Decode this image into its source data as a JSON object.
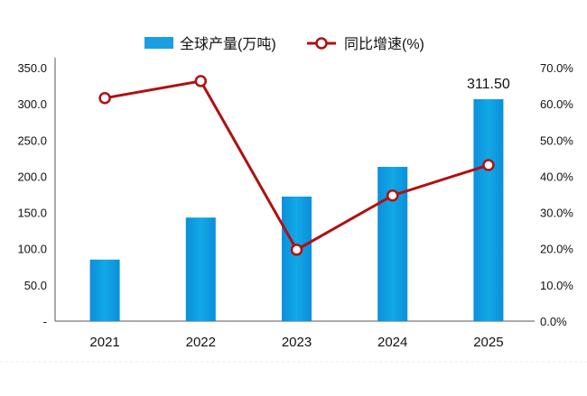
{
  "chart_data": {
    "type": "bar+line",
    "categories": [
      "2021",
      "2022",
      "2023",
      "2024",
      "2025"
    ],
    "series": [
      {
        "name": "全球产量(万吨)",
        "type": "bar",
        "axis": "left",
        "color": "#0f9be0",
        "values": [
          85,
          143,
          172,
          213,
          311.5
        ]
      },
      {
        "name": "同比增速(%)",
        "type": "line",
        "axis": "right",
        "color": "#b01010",
        "values": [
          61.6,
          66.3,
          19.7,
          34.7,
          43.1
        ]
      }
    ],
    "data_labels": [
      {
        "category": "2025",
        "text": "311.50"
      }
    ],
    "left_axis": {
      "ylim": [
        0,
        350
      ],
      "ticks": [
        "-",
        "50.0",
        "100.0",
        "150.0",
        "200.0",
        "250.0",
        "300.0",
        "350.0"
      ]
    },
    "right_axis": {
      "ylim": [
        0,
        70
      ],
      "ticks": [
        "0.0%",
        "10.0%",
        "20.0%",
        "30.0%",
        "40.0%",
        "50.0%",
        "60.0%",
        "70.0%"
      ]
    },
    "legend_position": "top",
    "grid": false
  }
}
